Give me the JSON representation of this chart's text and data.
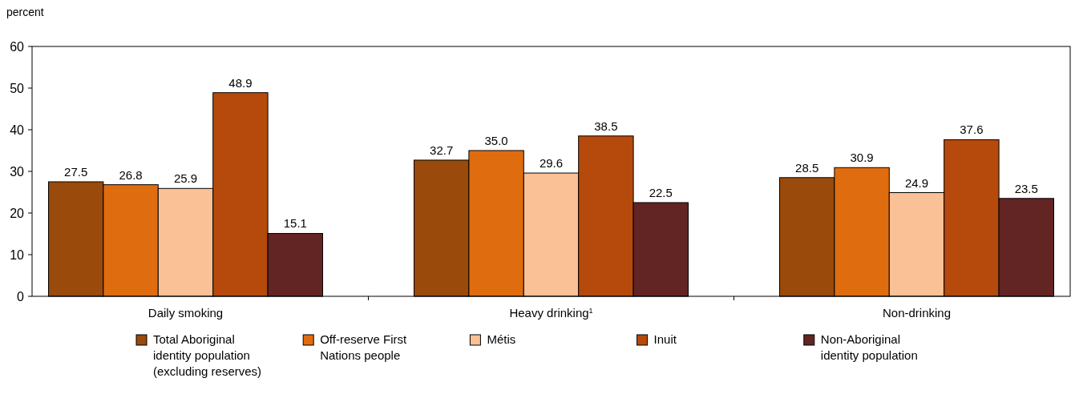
{
  "chart_data": {
    "type": "bar",
    "ylabel": "percent",
    "categories": [
      "Daily smoking",
      "Heavy drinking$^{1}$",
      "Non-drinking"
    ],
    "series": [
      {
        "name": "Total Aboriginal identity population (excluding reserves)",
        "color": "#9a4a0a",
        "values": [
          27.5,
          32.7,
          28.5
        ],
        "value_labels": [
          "27.5",
          "32.7",
          "28.5"
        ]
      },
      {
        "name": "Off-reserve First Nations people",
        "color": "#e06c10",
        "values": [
          26.8,
          35.0,
          30.9
        ],
        "value_labels": [
          "26.8",
          "35.0",
          "30.9"
        ]
      },
      {
        "name": "Métis",
        "color": "#f9c195",
        "values": [
          25.9,
          29.6,
          24.9
        ],
        "value_labels": [
          "25.9",
          "29.6",
          "24.9"
        ]
      },
      {
        "name": "Inuit",
        "color": "#b54a0c",
        "values": [
          48.9,
          38.5,
          37.6
        ],
        "value_labels": [
          "48.9",
          "38.5",
          "37.6"
        ]
      },
      {
        "name": "Non-Aboriginal identity population",
        "color": "#632424",
        "values": [
          15.1,
          22.5,
          23.5
        ],
        "value_labels": [
          "15.1",
          "22.5",
          "23.5"
        ]
      }
    ],
    "ylim": [
      0,
      60
    ],
    "yticks": [
      0,
      10,
      20,
      30,
      40,
      50,
      60
    ],
    "grid": false,
    "legend": "bottom"
  }
}
